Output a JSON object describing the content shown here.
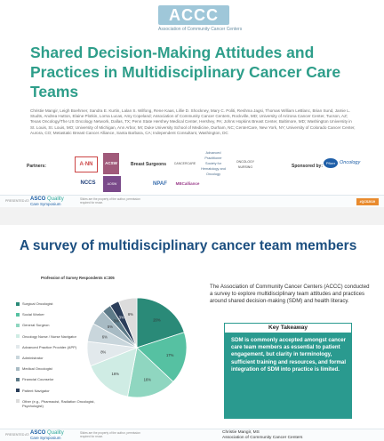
{
  "slide1": {
    "accc_logo": "ACCC",
    "accc_sub": "Association of Community Cancer Centers",
    "title": "Shared Decision-Making Attitudes and Practices in Multidisciplinary Cancer Care Teams",
    "authors": "Christie Mangir, Leigh Boehmer, Sandra E. Kurtin, Lalan S. Wilfong, Rene Kaas, Lillie D. Shockney, Mary C. Politi, Reshma Jagsi, Thomas William LeBlanc, Brian Sund, Jamie L. Studts, Andrea Hutton, Elaine Plotkin, Lorna Lucas, Amy Copeland; Association of Community Cancer Centers, Rockville, MD; University of Arizona Cancer Center, Tucson, AZ; Texas Oncology/The US Oncology Network, Dallas, TX; Penn State Hershey Medical Center, Hershey, PA; Johns Hopkins Breast Center, Baltimore, MD; Washington University in St. Louis, St. Louis, MO; University of Michigan, Ann Arbor, MI; Duke University School of Medicine, Durham, NC; CenterCare, New York, NY; University of Colorado Cancer Center, Aurora, CO; Metastatic Breast Cancer Alliance, Santa Barbara, CA; Independent Consultant, Washington, DC",
    "partners_label": "Partners:",
    "sponsored_label": "Sponsored by:",
    "logos": {
      "anm": "A·NN",
      "acsw": "ACSW",
      "breast": "Breast Surgeons",
      "cancercare": "CANCERCARE",
      "adult": "Advanced Practitioner Society for Hematology and Oncology",
      "onc": "ONCOLOGY NURSING",
      "pfizer_mark": "Pfizer",
      "pfizer_text": "Oncology",
      "nccs": "NCCS",
      "ahnsw": "AOSW",
      "npaf": "NPAF",
      "mbc": "MBCalliance"
    }
  },
  "footer": {
    "presented_at": "PRESENTED AT:",
    "asco_name": "ASCO",
    "asco_quality": "Quality",
    "asco_symposium": "Care Symposium",
    "note": "Slides are the property of the author, permission required for reuse.",
    "hashtag": "#QCS2019",
    "presenter_name": "Christie Mangir, MS",
    "presenter_org": "Association of Community Cancer Centers"
  },
  "slide2": {
    "title": "A survey of multidisciplinary cancer team members",
    "chart_title": "Profession of Survey Respondents n=305",
    "description": "The Association of Community Cancer Centers (ACCC) conducted a survey to explore multidisciplinary team attitudes and practices around shared decision-making (SDM) and health literacy.",
    "takeaway_heading": "Key Takeaway",
    "takeaway_body": "SDM is commonly accepted amongst cancer care team members as essential to patient engagement, but clarity in terminology, sufficient training and resources, and formal integration of SDM into practice is limited."
  },
  "chart_data": {
    "type": "pie",
    "title": "Profession of Survey Respondents n=305",
    "categories": [
      "Surgical Oncologist",
      "Social Worker",
      "General Surgeon",
      "Oncology Nurse / Nurse Navigator",
      "Advanced Practice Provider (APP)",
      "Administrator",
      "Medical Oncologist",
      "Financial Counselor",
      "Patient Navigator",
      "Other (e.g., Pharmacist, Radiation Oncologist, Psychologist)"
    ],
    "values": [
      20,
      17,
      16,
      16,
      8,
      6,
      5,
      3,
      3,
      6
    ],
    "labels": [
      "20%",
      "17%",
      "16%",
      "16%",
      "8%",
      "6%",
      "5%",
      "3%",
      "3%",
      "6%"
    ],
    "colors": [
      "#2a8a78",
      "#56c1a2",
      "#8fd6c0",
      "#cfece4",
      "#e2e9ec",
      "#c9d6dc",
      "#a8bbc4",
      "#5d7a88",
      "#2b3e5a",
      "#dcdcdc"
    ]
  }
}
